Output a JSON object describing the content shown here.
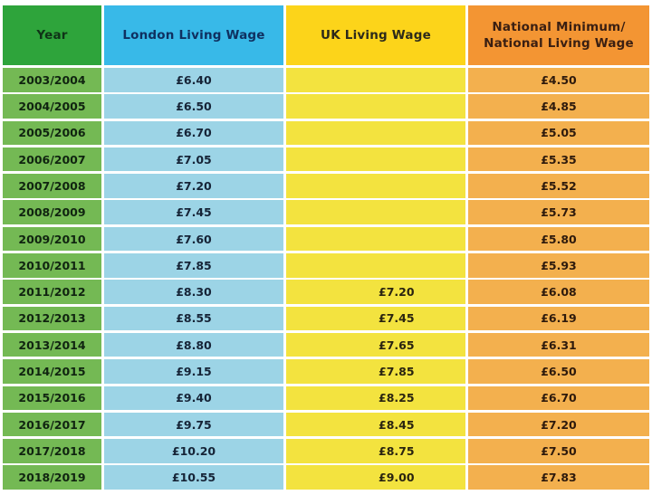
{
  "table": {
    "headers": {
      "year": "Year",
      "london": "London Living Wage",
      "uk": "UK Living Wage",
      "national_line1": "National Minimum/",
      "national_line2": "National Living Wage"
    },
    "colors": {
      "year_header": "#2ea43b",
      "london_header": "#38b9e8",
      "uk_header": "#fcd41a",
      "national_header": "#f39533",
      "year_cell": "#74b954",
      "london_cell": "#9cd4e6",
      "uk_cell": "#f3e33f",
      "national_cell": "#f3b04e"
    },
    "rows": [
      {
        "year": "2003/2004",
        "london": "£6.40",
        "uk": "",
        "national": "£4.50"
      },
      {
        "year": "2004/2005",
        "london": "£6.50",
        "uk": "",
        "national": "£4.85"
      },
      {
        "year": "2005/2006",
        "london": "£6.70",
        "uk": "",
        "national": "£5.05"
      },
      {
        "year": "2006/2007",
        "london": "£7.05",
        "uk": "",
        "national": "£5.35"
      },
      {
        "year": "2007/2008",
        "london": "£7.20",
        "uk": "",
        "national": "£5.52"
      },
      {
        "year": "2008/2009",
        "london": "£7.45",
        "uk": "",
        "national": "£5.73"
      },
      {
        "year": "2009/2010",
        "london": "£7.60",
        "uk": "",
        "national": "£5.80"
      },
      {
        "year": "2010/2011",
        "london": "£7.85",
        "uk": "",
        "national": "£5.93"
      },
      {
        "year": "2011/2012",
        "london": "£8.30",
        "uk": "£7.20",
        "national": "£6.08"
      },
      {
        "year": "2012/2013",
        "london": "£8.55",
        "uk": "£7.45",
        "national": "£6.19"
      },
      {
        "year": "2013/2014",
        "london": "£8.80",
        "uk": "£7.65",
        "national": "£6.31"
      },
      {
        "year": "2014/2015",
        "london": "£9.15",
        "uk": "£7.85",
        "national": "£6.50"
      },
      {
        "year": "2015/2016",
        "london": "£9.40",
        "uk": "£8.25",
        "national": "£6.70"
      },
      {
        "year": "2016/2017",
        "london": "£9.75",
        "uk": "£8.45",
        "national": "£7.20"
      },
      {
        "year": "2017/2018",
        "london": "£10.20",
        "uk": "£8.75",
        "national": "£7.50"
      },
      {
        "year": "2018/2019",
        "london": "£10.55",
        "uk": "£9.00",
        "national": "£7.83"
      }
    ]
  }
}
